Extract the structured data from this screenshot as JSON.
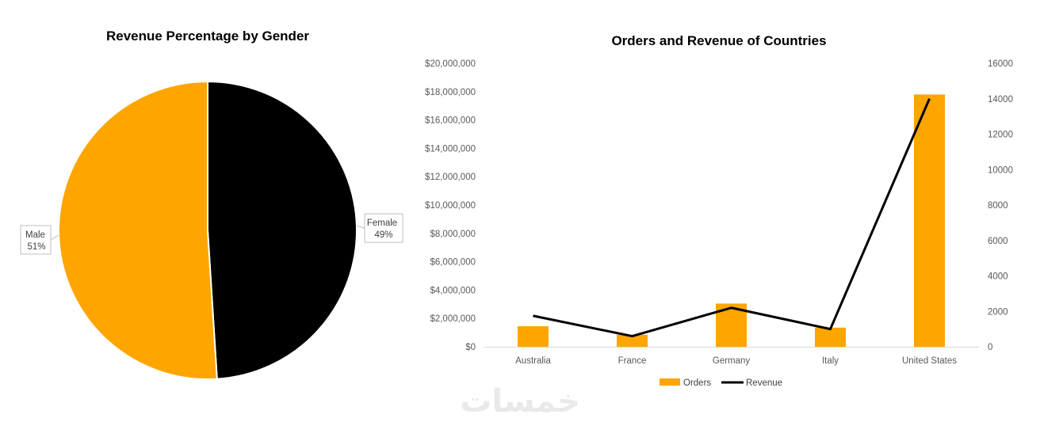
{
  "colors": {
    "orange": "#FFA500",
    "black": "#000000",
    "axis": "#d9d9d9",
    "tick": "#595959"
  },
  "watermark": "خمسات",
  "chart_data": [
    {
      "type": "pie",
      "title": "Revenue Percentage by Gender",
      "slices": [
        {
          "name": "Female",
          "value": 49,
          "percent_label": "49%",
          "color": "#000000"
        },
        {
          "name": "Male",
          "value": 51,
          "percent_label": "51%",
          "color": "#FFA500"
        }
      ]
    },
    {
      "type": "bar",
      "title": "Orders and Revenue of Countries",
      "categories": [
        "Australia",
        "France",
        "Germany",
        "Italy",
        "United States"
      ],
      "y_left": {
        "min": 0,
        "max": 20000000,
        "step": 2000000,
        "ticks": [
          "$0",
          "$2,000,000",
          "$4,000,000",
          "$6,000,000",
          "$8,000,000",
          "$10,000,000",
          "$12,000,000",
          "$14,000,000",
          "$16,000,000",
          "$18,000,000",
          "$20,000,000"
        ]
      },
      "y_right": {
        "min": 0,
        "max": 16000,
        "step": 2000,
        "ticks": [
          "0",
          "2000",
          "4000",
          "6000",
          "8000",
          "10000",
          "12000",
          "14000",
          "16000"
        ]
      },
      "series": [
        {
          "name": "Orders",
          "type": "bar",
          "axis": "left",
          "color": "#FFA500",
          "values": [
            1450000,
            850000,
            3050000,
            1350000,
            17800000
          ]
        },
        {
          "name": "Revenue",
          "type": "line",
          "axis": "right",
          "color": "#000000",
          "values": [
            1750,
            600,
            2200,
            1000,
            14000
          ]
        }
      ],
      "legend_position": "bottom"
    }
  ]
}
